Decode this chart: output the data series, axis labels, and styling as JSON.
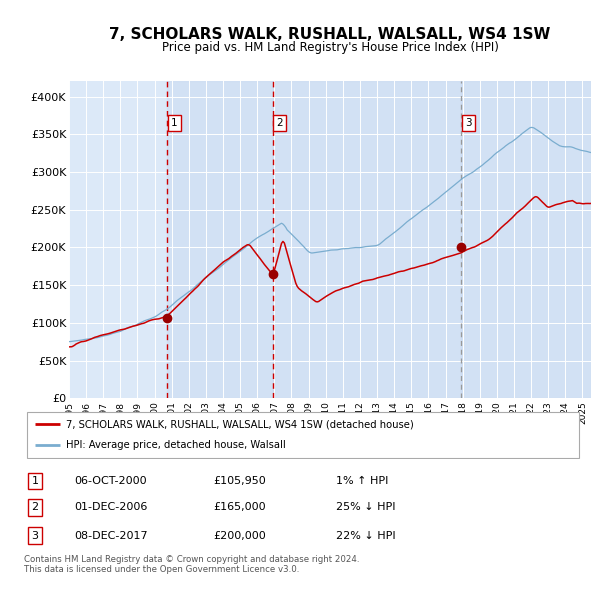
{
  "title": "7, SCHOLARS WALK, RUSHALL, WALSALL, WS4 1SW",
  "subtitle": "Price paid vs. HM Land Registry's House Price Index (HPI)",
  "background_color": "#dce9f8",
  "plot_bg_color": "#dce9f8",
  "ylim": [
    0,
    420000
  ],
  "yticks": [
    0,
    50000,
    100000,
    150000,
    200000,
    250000,
    300000,
    350000,
    400000
  ],
  "ytick_labels": [
    "£0",
    "£50K",
    "£100K",
    "£150K",
    "£200K",
    "£250K",
    "£300K",
    "£350K",
    "£400K"
  ],
  "sale1": {
    "date": 2000.75,
    "price": 105950,
    "label": "1"
  },
  "sale2": {
    "date": 2006.92,
    "price": 165000,
    "label": "2"
  },
  "sale3": {
    "date": 2017.93,
    "price": 200000,
    "label": "3"
  },
  "red_line_color": "#cc0000",
  "blue_line_color": "#7aadcf",
  "marker_color": "#990000",
  "vline1_color": "#cc0000",
  "vline2_color": "#cc0000",
  "vline3_color": "#999999",
  "legend_red_label": "7, SCHOLARS WALK, RUSHALL, WALSALL, WS4 1SW (detached house)",
  "legend_blue_label": "HPI: Average price, detached house, Walsall",
  "table_rows": [
    [
      "1",
      "06-OCT-2000",
      "£105,950",
      "1% ↑ HPI"
    ],
    [
      "2",
      "01-DEC-2006",
      "£165,000",
      "25% ↓ HPI"
    ],
    [
      "3",
      "08-DEC-2017",
      "£200,000",
      "22% ↓ HPI"
    ]
  ],
  "footer": "Contains HM Land Registry data © Crown copyright and database right 2024.\nThis data is licensed under the Open Government Licence v3.0.",
  "xstart": 1995.0,
  "xend": 2025.5
}
